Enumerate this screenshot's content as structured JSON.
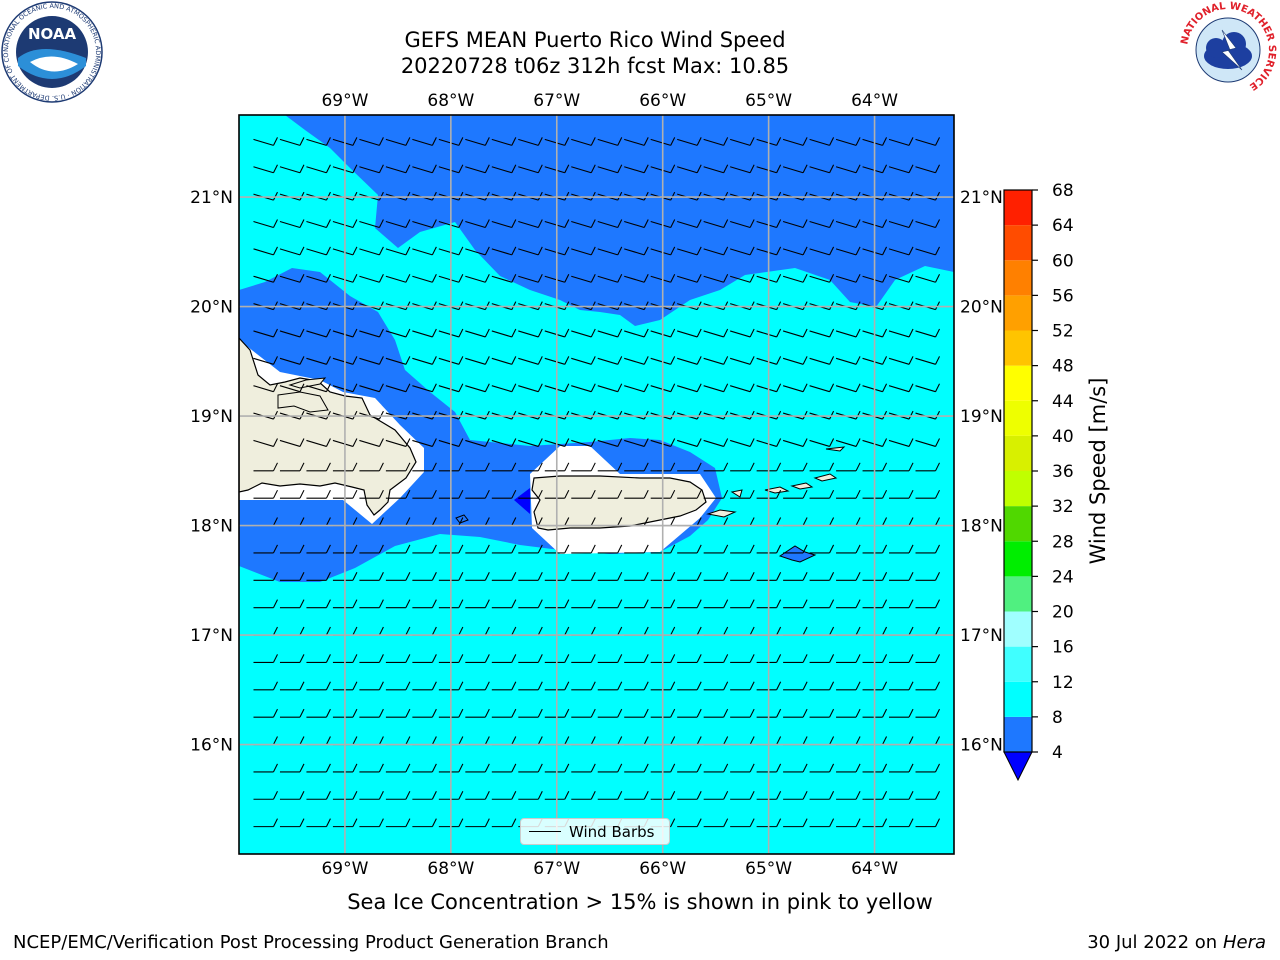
{
  "header": {
    "title_line1": "GEFS MEAN Puerto Rico Wind Speed",
    "title_line2": "20220728 t06z 312h fcst   Max: 10.85"
  },
  "logos": {
    "noaa_text": "NOAA",
    "noaa_ring": "NATIONAL OCEANIC AND ATMOSPHERIC ADMINISTRATION · U.S. DEPARTMENT OF COMMERCE",
    "nws_ring": "NATIONAL WEATHER SERVICE"
  },
  "map": {
    "lon_labels": [
      "69°W",
      "68°W",
      "67°W",
      "66°W",
      "65°W",
      "64°W"
    ],
    "lat_labels": [
      "21°N",
      "20°N",
      "19°N",
      "18°N",
      "17°N",
      "16°N"
    ],
    "lon_values": [
      -69,
      -68,
      -67,
      -66,
      -65,
      -64
    ],
    "lat_values": [
      21,
      20,
      19,
      18,
      17,
      16
    ],
    "extent": {
      "lon_min": -70,
      "lon_max": -63.25,
      "lat_min": 15,
      "lat_max": 21.75
    },
    "colors": {
      "sea_light": "#00ffff",
      "sea_dark": "#1e78ff",
      "land": "#efeedd",
      "below_min": "#0000ff",
      "grid": "#b0b0b0"
    },
    "legend_label": "Wind Barbs"
  },
  "colorbar": {
    "label": "Wind Speed [m/s]",
    "ticks": [
      4,
      8,
      12,
      16,
      20,
      24,
      28,
      32,
      36,
      40,
      44,
      48,
      52,
      56,
      60,
      64,
      68
    ],
    "colors": [
      "#1e78ff",
      "#00ffff",
      "#40ffff",
      "#a0ffff",
      "#50f080",
      "#00ee00",
      "#50d800",
      "#c0ff00",
      "#d8f000",
      "#eeff00",
      "#ffff00",
      "#ffc400",
      "#ffa000",
      "#ff8000",
      "#ff4c00",
      "#ff2000",
      "#ff0000"
    ],
    "under_color": "#0000ff"
  },
  "note": "Sea Ice Concentration > 15% is shown in pink to yellow",
  "footer": {
    "left": "NCEP/EMC/Verification Post Processing Product Generation Branch",
    "right_prefix": "30 Jul 2022 on ",
    "right_host": "Hera"
  }
}
